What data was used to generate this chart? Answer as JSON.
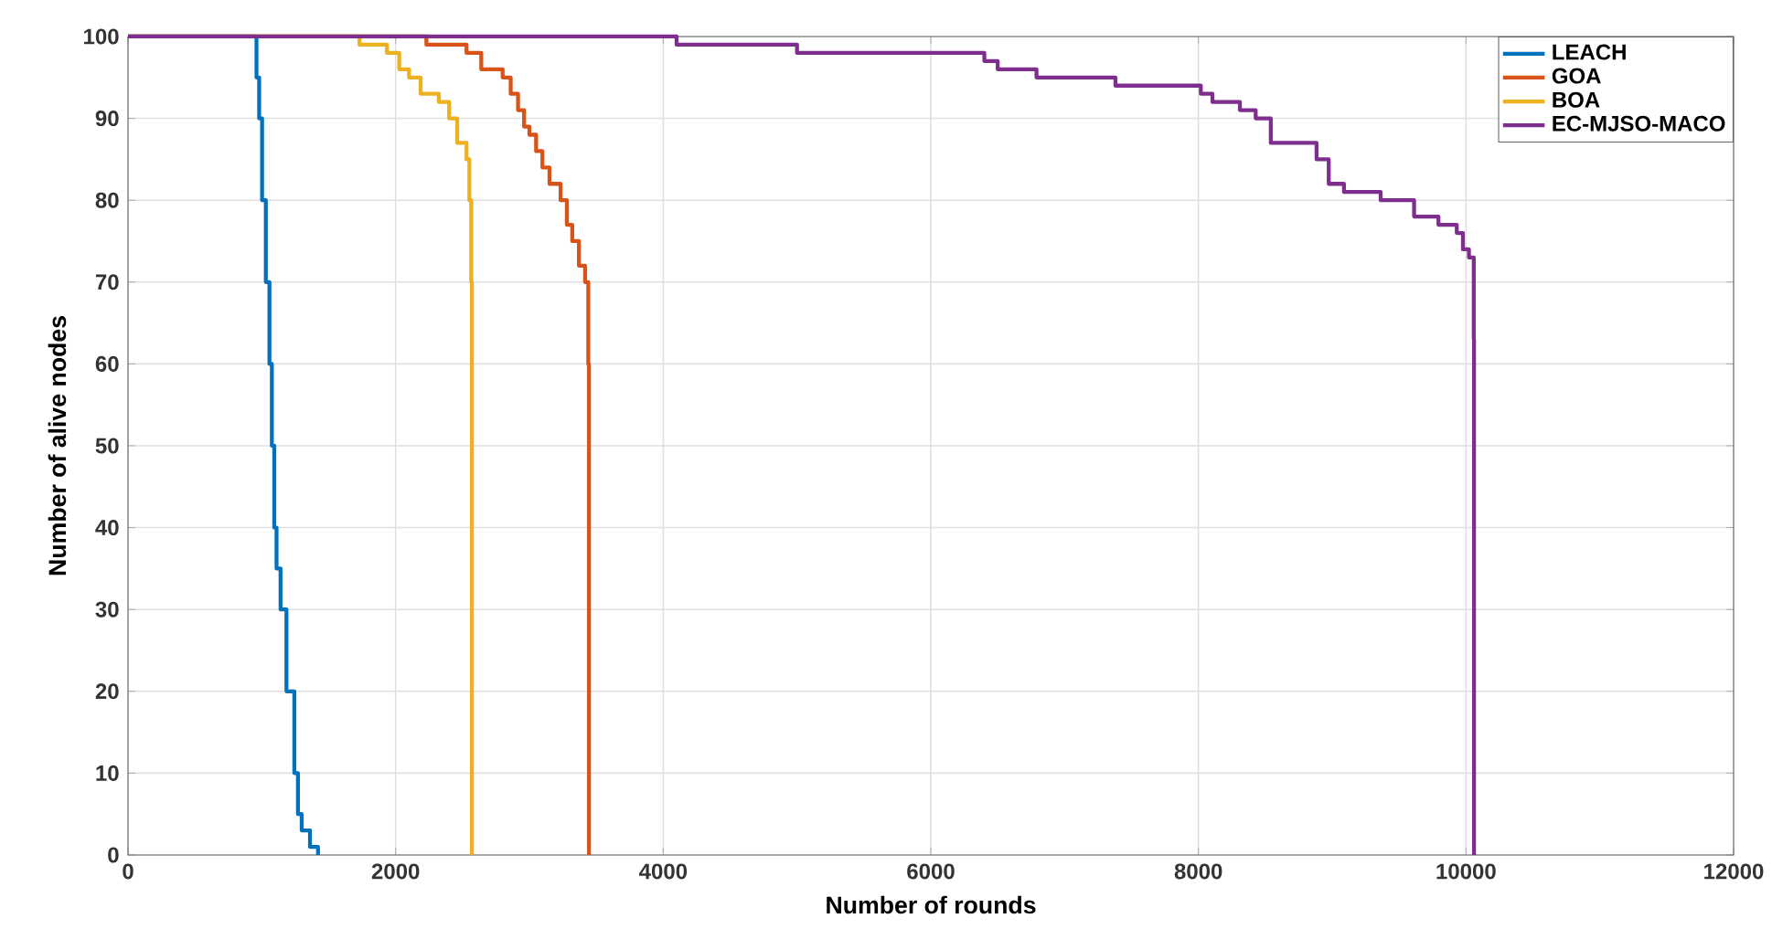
{
  "chart_data": {
    "type": "step",
    "xlabel": "Number of rounds",
    "ylabel": "Number of alive nodes",
    "xlim": [
      0,
      12000
    ],
    "ylim": [
      0,
      100
    ],
    "xticks": [
      0,
      2000,
      4000,
      6000,
      8000,
      10000,
      12000
    ],
    "yticks": [
      0,
      10,
      20,
      30,
      40,
      50,
      60,
      70,
      80,
      90,
      100
    ],
    "grid": true,
    "legend": "top right",
    "line_style": "solid",
    "marker": "none",
    "series": [
      {
        "name": "LEACH",
        "color": "#0072bd",
        "x": [
          0,
          943,
          960,
          980,
          1002,
          1030,
          1057,
          1075,
          1093,
          1110,
          1140,
          1184,
          1243,
          1270,
          1298,
          1360,
          1420
        ],
        "values": [
          100,
          100,
          95,
          90,
          80,
          70,
          60,
          50,
          40,
          35,
          30,
          20,
          10,
          5,
          3,
          1,
          0
        ]
      },
      {
        "name": "GOA",
        "color": "#d95319",
        "x": [
          0,
          2230,
          2530,
          2640,
          2800,
          2860,
          2915,
          2960,
          3000,
          3050,
          3097,
          3150,
          3233,
          3280,
          3320,
          3370,
          3416,
          3440,
          3445
        ],
        "values": [
          100,
          99,
          98,
          96,
          95,
          93,
          91,
          89,
          88,
          86,
          84,
          82,
          80,
          77,
          75,
          72,
          70,
          60,
          0
        ]
      },
      {
        "name": "BOA",
        "color": "#edb120",
        "x": [
          0,
          1730,
          1935,
          2027,
          2100,
          2187,
          2323,
          2400,
          2460,
          2530,
          2551,
          2565,
          2570
        ],
        "values": [
          100,
          99,
          98,
          96,
          95,
          93,
          92,
          90,
          87,
          85,
          80,
          70,
          0
        ]
      },
      {
        "name": "EC-MJSO-MACO",
        "color": "#7e2f8e",
        "x": [
          0,
          4100,
          5000,
          6400,
          6500,
          6790,
          7380,
          8018,
          8105,
          8310,
          8428,
          8541,
          8883,
          8974,
          9088,
          9362,
          9612,
          9794,
          9931,
          9977,
          10022,
          10058,
          10060
        ],
        "values": [
          100,
          99,
          98,
          97,
          96,
          95,
          94,
          93,
          92,
          91,
          90,
          87,
          85,
          82,
          81,
          80,
          78,
          77,
          76,
          74,
          73,
          63,
          0
        ]
      }
    ]
  }
}
